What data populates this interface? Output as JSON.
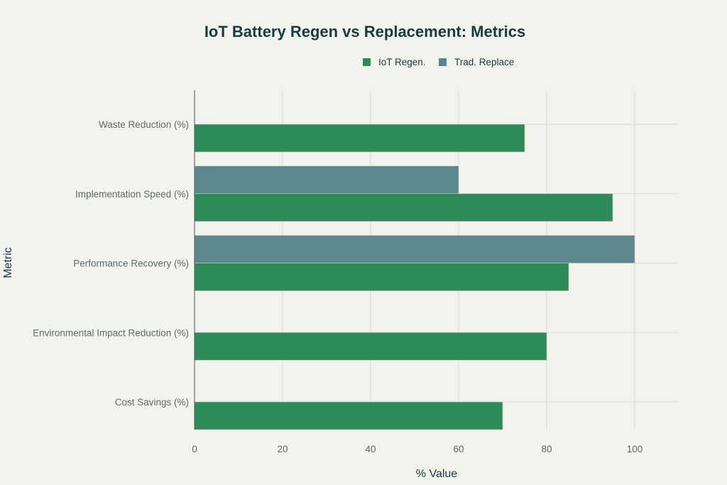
{
  "chart_data": {
    "type": "bar",
    "orientation": "horizontal",
    "title": "IoT Battery Regen vs Replacement: Metrics",
    "xlabel": "% Value",
    "ylabel": "Metric",
    "xlim": [
      0,
      110
    ],
    "xticks": [
      0,
      20,
      40,
      60,
      80,
      100
    ],
    "grid": true,
    "legend_position": "top",
    "categories": [
      "Waste Reduction (%)",
      "Implementation Speed (%)",
      "Performance Recovery (%)",
      "Environmental Impact Reduction (%)",
      "Cost Savings (%)"
    ],
    "series": [
      {
        "name": "IoT Regen.",
        "color": "#2E8B57",
        "values": [
          75,
          95,
          85,
          80,
          70
        ]
      },
      {
        "name": "Trad. Replace",
        "color": "#5D878F",
        "values": [
          null,
          60,
          100,
          null,
          null
        ]
      }
    ]
  }
}
